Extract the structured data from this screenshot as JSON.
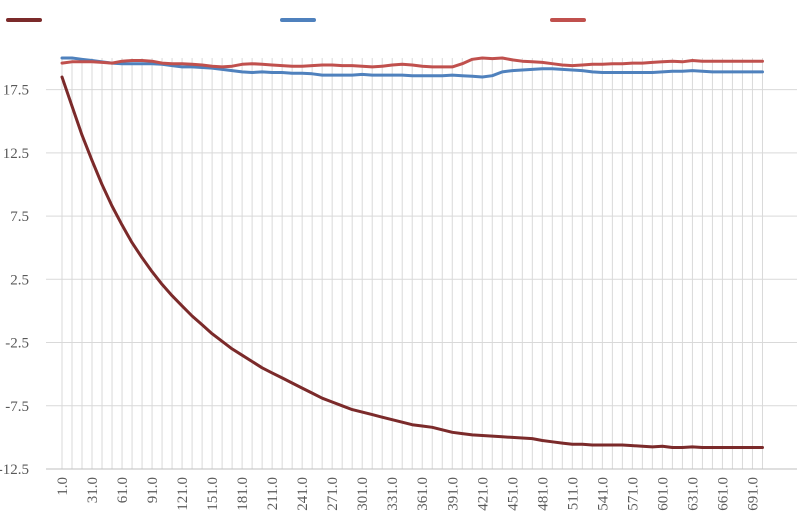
{
  "chart_data": {
    "type": "line",
    "title": "",
    "xlabel": "",
    "ylabel": "",
    "ylim": [
      -12.5,
      20
    ],
    "y_ticks": [
      -12.5,
      -7.5,
      -2.5,
      2.5,
      7.5,
      12.5,
      17.5
    ],
    "y_tick_labels": [
      "-12.5",
      "-7.5",
      "-2.5",
      "2.5",
      "7.5",
      "12.5",
      "17.5"
    ],
    "x_categories": [
      "1.0",
      "11.0",
      "21.0",
      "31.0",
      "41.0",
      "51.0",
      "61.0",
      "71.0",
      "81.0",
      "91.0",
      "101.0",
      "111.0",
      "121.0",
      "131.0",
      "141.0",
      "151.0",
      "161.0",
      "171.0",
      "181.0",
      "191.0",
      "201.0",
      "211.0",
      "221.0",
      "231.0",
      "241.0",
      "251.0",
      "261.0",
      "271.0",
      "281.0",
      "291.0",
      "301.0",
      "311.0",
      "321.0",
      "331.0",
      "341.0",
      "351.0",
      "361.0",
      "371.0",
      "381.0",
      "391.0",
      "401.0",
      "411.0",
      "421.0",
      "431.0",
      "441.0",
      "451.0",
      "461.0",
      "471.0",
      "481.0",
      "491.0",
      "501.0",
      "511.0",
      "521.0",
      "531.0",
      "541.0",
      "551.0",
      "561.0",
      "571.0",
      "581.0",
      "591.0",
      "601.0",
      "611.0",
      "621.0",
      "631.0",
      "641.0",
      "651.0",
      "661.0",
      "671.0",
      "681.0",
      "691.0",
      "701.0"
    ],
    "x_tick_labels": [
      "1.0",
      "31.0",
      "61.0",
      "91.0",
      "121.0",
      "151.0",
      "181.0",
      "211.0",
      "241.0",
      "271.0",
      "301.0",
      "331.0",
      "361.0",
      "391.0",
      "421.0",
      "451.0",
      "481.0",
      "511.0",
      "541.0",
      "571.0",
      "601.0",
      "631.0",
      "661.0",
      "691.0"
    ],
    "grid": "vertical and horizontal",
    "legend": "top",
    "series": [
      {
        "name": "",
        "color": "#7B2A2A",
        "values": [
          18.5,
          16.2,
          13.9,
          11.9,
          10.0,
          8.3,
          6.8,
          5.4,
          4.2,
          3.1,
          2.1,
          1.2,
          0.4,
          -0.4,
          -1.1,
          -1.8,
          -2.4,
          -3.0,
          -3.5,
          -4.0,
          -4.5,
          -4.9,
          -5.3,
          -5.7,
          -6.1,
          -6.5,
          -6.9,
          -7.2,
          -7.5,
          -7.8,
          -8.0,
          -8.2,
          -8.4,
          -8.6,
          -8.8,
          -9.0,
          -9.1,
          -9.2,
          -9.4,
          -9.6,
          -9.7,
          -9.8,
          -9.85,
          -9.9,
          -9.95,
          -10.0,
          -10.05,
          -10.1,
          -10.25,
          -10.35,
          -10.45,
          -10.55,
          -10.55,
          -10.6,
          -10.6,
          -10.6,
          -10.6,
          -10.65,
          -10.7,
          -10.75,
          -10.7,
          -10.8,
          -10.8,
          -10.75,
          -10.8,
          -10.8,
          -10.8,
          -10.8,
          -10.8,
          -10.8,
          -10.8
        ]
      },
      {
        "name": "",
        "color": "#4F81BD",
        "values": [
          20.0,
          20.0,
          19.9,
          19.8,
          19.7,
          19.6,
          19.55,
          19.55,
          19.55,
          19.55,
          19.5,
          19.4,
          19.3,
          19.3,
          19.25,
          19.2,
          19.1,
          19.0,
          18.9,
          18.85,
          18.9,
          18.85,
          18.85,
          18.8,
          18.8,
          18.75,
          18.65,
          18.65,
          18.65,
          18.65,
          18.7,
          18.65,
          18.65,
          18.65,
          18.65,
          18.6,
          18.6,
          18.6,
          18.6,
          18.65,
          18.6,
          18.55,
          18.5,
          18.6,
          18.9,
          19.0,
          19.05,
          19.1,
          19.15,
          19.15,
          19.1,
          19.05,
          19.0,
          18.9,
          18.85,
          18.85,
          18.85,
          18.85,
          18.85,
          18.85,
          18.9,
          18.95,
          18.95,
          19.0,
          18.95,
          18.9,
          18.9,
          18.9,
          18.9,
          18.9,
          18.9
        ]
      },
      {
        "name": "",
        "color": "#C0504D",
        "values": [
          19.6,
          19.7,
          19.7,
          19.7,
          19.65,
          19.6,
          19.75,
          19.8,
          19.8,
          19.75,
          19.6,
          19.55,
          19.55,
          19.5,
          19.45,
          19.35,
          19.3,
          19.35,
          19.5,
          19.55,
          19.5,
          19.45,
          19.4,
          19.35,
          19.35,
          19.4,
          19.45,
          19.45,
          19.4,
          19.4,
          19.35,
          19.3,
          19.35,
          19.45,
          19.5,
          19.45,
          19.35,
          19.3,
          19.3,
          19.3,
          19.55,
          19.9,
          20.0,
          19.95,
          20.0,
          19.85,
          19.75,
          19.7,
          19.65,
          19.55,
          19.45,
          19.4,
          19.45,
          19.5,
          19.5,
          19.55,
          19.55,
          19.6,
          19.6,
          19.65,
          19.7,
          19.75,
          19.7,
          19.8,
          19.75,
          19.75,
          19.75,
          19.75,
          19.75,
          19.75,
          19.75
        ]
      }
    ]
  }
}
